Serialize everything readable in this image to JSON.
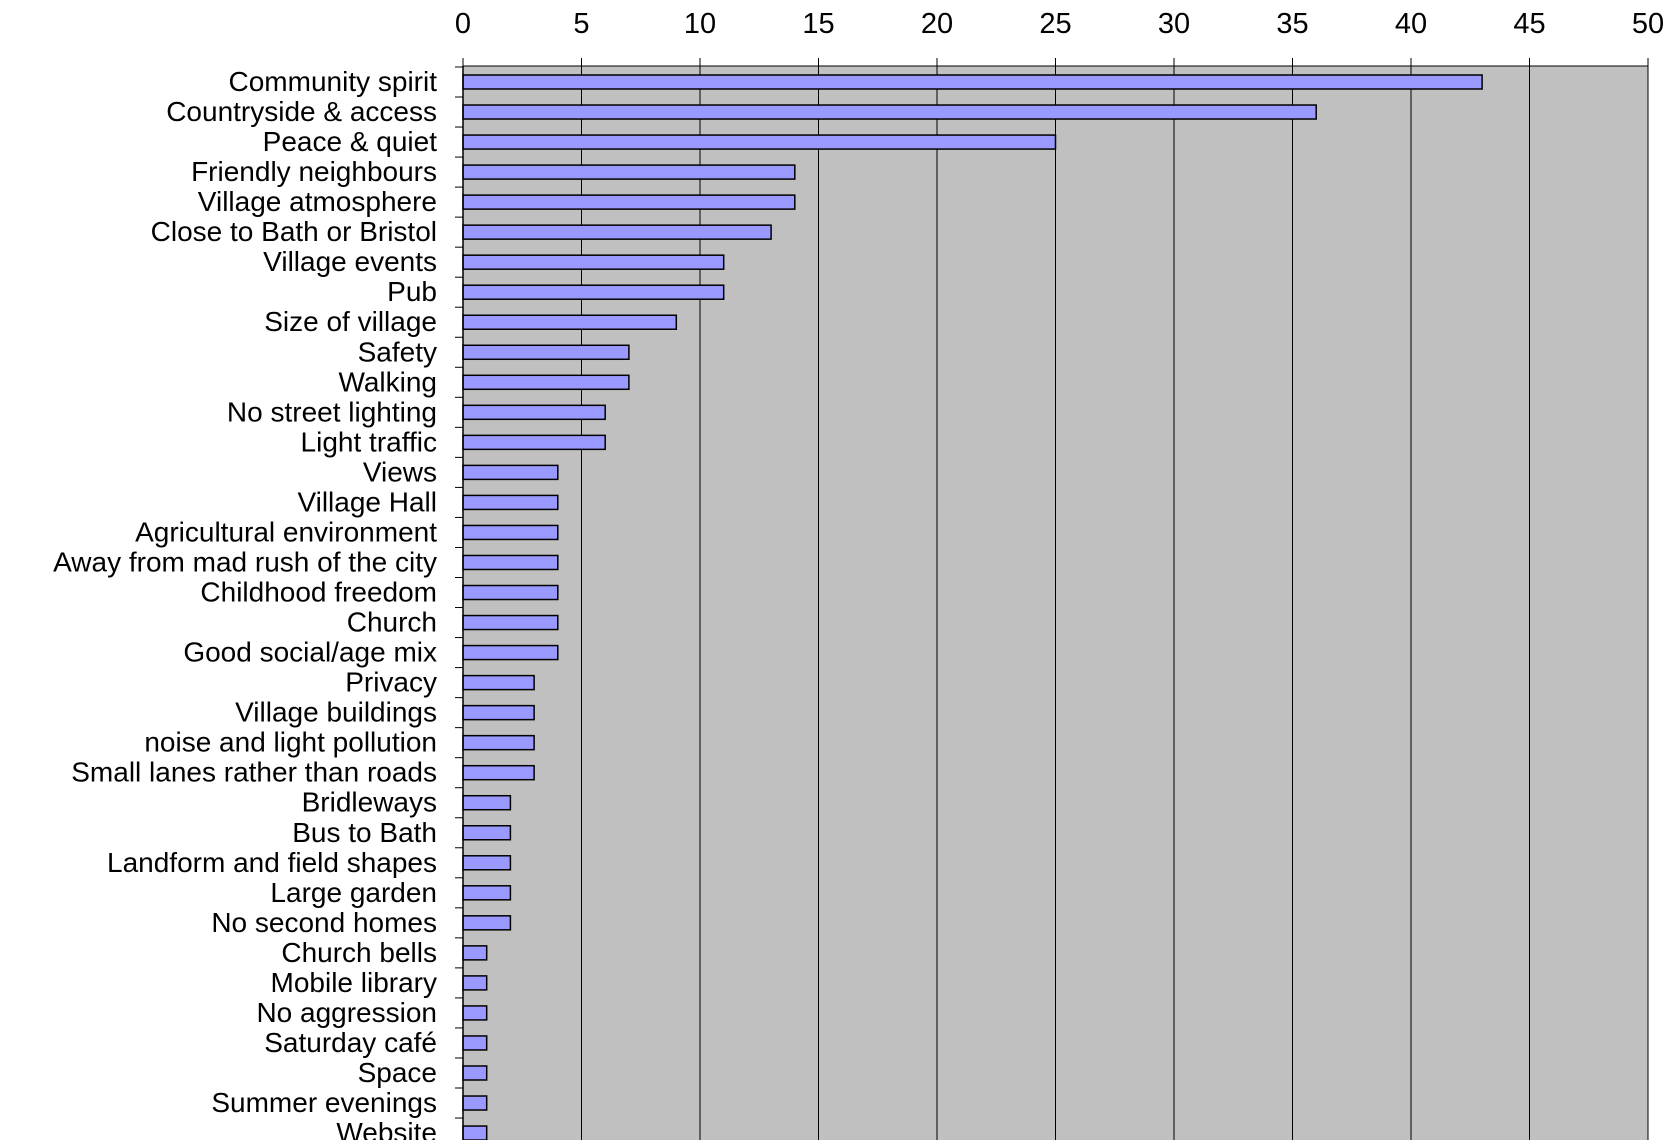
{
  "chart_data": {
    "type": "bar",
    "orientation": "horizontal",
    "title": "",
    "xlabel": "",
    "ylabel": "",
    "xlim": [
      0,
      50
    ],
    "ticks": [
      "0",
      "5",
      "10",
      "15",
      "20",
      "25",
      "30",
      "35",
      "40",
      "45",
      "50"
    ],
    "x_axis_position": "top",
    "grid": true,
    "legend": "none",
    "colors": {
      "plot_background": "#c0c0c0",
      "bar_fill": "#9999ff",
      "bar_stroke": "#000000",
      "gridline": "#000000"
    },
    "categories": [
      "Community spirit",
      "Countryside & access",
      "Peace & quiet",
      "Friendly neighbours",
      "Village atmosphere",
      "Close to Bath or Bristol",
      "Village events",
      "Pub",
      "Size of village",
      "Safety",
      "Walking",
      "No street lighting",
      "Light traffic",
      "Views",
      "Village Hall",
      "Agricultural environment",
      "Away from mad rush of the city",
      "Childhood freedom",
      "Church",
      "Good social/age mix",
      "Privacy",
      "Village buildings",
      "noise and light pollution",
      "Small lanes rather than roads",
      "Bridleways",
      "Bus to Bath",
      "Landform and field shapes",
      "Large garden",
      "No second homes",
      "Church bells",
      "Mobile library",
      "No aggression",
      "Saturday café",
      "Space",
      "Summer evenings",
      "Website"
    ],
    "values": [
      43,
      36,
      25,
      14,
      14,
      13,
      11,
      11,
      9,
      7,
      7,
      6,
      6,
      4,
      4,
      4,
      4,
      4,
      4,
      4,
      3,
      3,
      3,
      3,
      2,
      2,
      2,
      2,
      2,
      1,
      1,
      1,
      1,
      1,
      1,
      1
    ]
  }
}
